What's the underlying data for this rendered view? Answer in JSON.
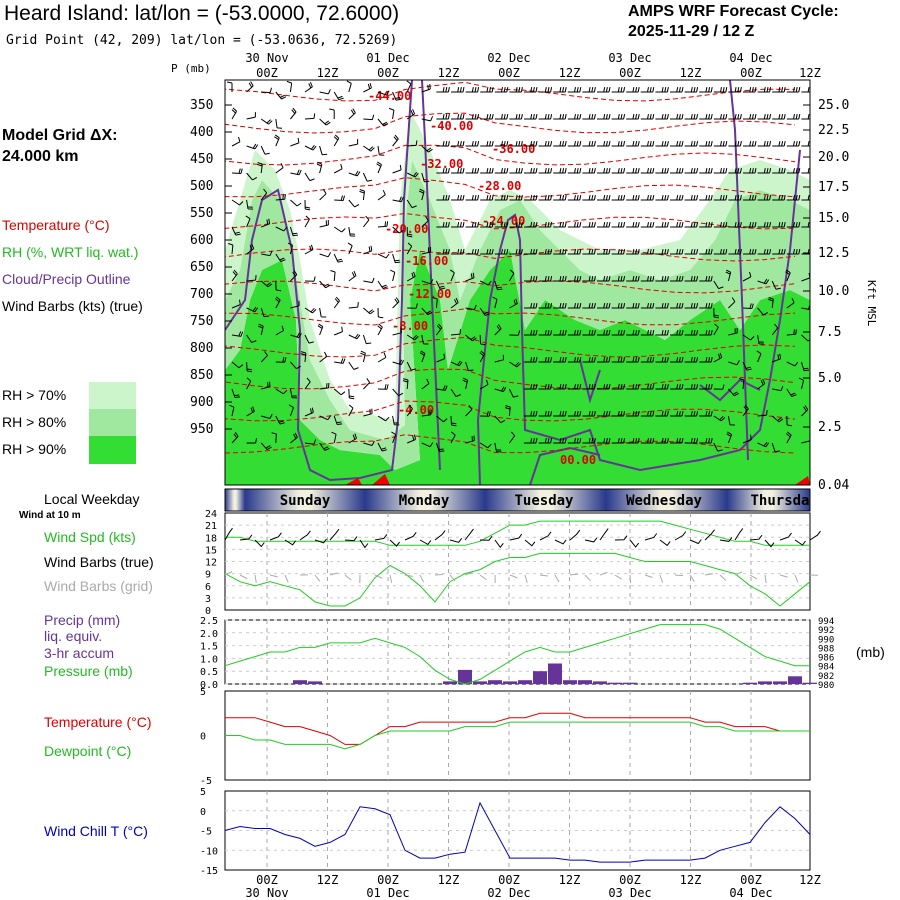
{
  "header": {
    "title": "Heard Island:  lat/lon = (-53.0000, 72.6000)",
    "subtitle": "Grid Point (42, 209) lat/lon = (-53.0636, 72.5269)",
    "cycle_line1": "AMPS WRF Forecast Cycle:",
    "cycle_line2": "2025-11-29 / 12  Z"
  },
  "labels": {
    "grid_dx1": "Model Grid ΔX:",
    "grid_dx2": " 24.000 km",
    "temperature": "Temperature (°C)",
    "rh": "RH (%, WRT liq. wat.)",
    "cloud": "Cloud/Precip Outline",
    "wind_barbs": "Wind Barbs (kts) (true)",
    "rh70": "RH > 70%",
    "rh80": "RH > 80%",
    "rh90": "RH > 90%",
    "local_weekday": "Local Weekday",
    "wind10m": "Wind at 10 m",
    "wind_spd": "Wind Spd (kts)",
    "wind_barbs_true": "Wind Barbs (true)",
    "wind_barbs_grid": "Wind Barbs (grid)",
    "precip1": "Precip (mm)",
    "precip2": "liq. equiv.",
    "precip3": "3-hr accum",
    "pressure": "Pressure (mb)",
    "mb": "(mb)",
    "temperature2": "Temperature (°C)",
    "dewpoint": "Dewpoint (°C)",
    "windchill": "Wind Chill T (°C)",
    "p_mb": "P (mb)",
    "kft": "Kft MSL"
  },
  "colors": {
    "rh70": "#ccf5cc",
    "rh80": "#a0e8a0",
    "rh90": "#33dd33",
    "temp_line": "#dd0000",
    "cloud_line": "#663399",
    "wind_line": "#22cc22",
    "chill_line": "#0000bb",
    "precip_bar": "#663399"
  },
  "chart_data": [
    {
      "type": "heatmap",
      "title": "",
      "x_top_ticks": [
        "00Z",
        "12Z",
        "00Z",
        "12Z",
        "00Z",
        "12Z",
        "00Z",
        "12Z",
        "00Z",
        "12Z"
      ],
      "x_top_dates": [
        "30 Nov",
        "01 Dec",
        "02 Dec",
        "03 Dec",
        "04 Dec"
      ],
      "pressure_ticks": [
        350,
        400,
        450,
        500,
        550,
        600,
        650,
        700,
        750,
        800,
        850,
        900,
        950
      ],
      "height_ticks_kft": [
        "25.0",
        "22.5",
        "20.0",
        "17.5",
        "15.0",
        "12.5",
        "10.0",
        "7.5",
        "5.0",
        "2.5",
        "0.04"
      ],
      "isotherm_labels": [
        "-44.00",
        "-40.00",
        "-36.00",
        "-32.00",
        "-28.00",
        "-24.00",
        "-20.00",
        "-16.00",
        "-12.00",
        "-8.00",
        "-4.00",
        "00.00"
      ],
      "weekdays": [
        "Sunday",
        "Monday",
        "Tuesday",
        "Wednesday",
        "Thursda"
      ]
    },
    {
      "type": "line",
      "title": "",
      "ylabel": "Wind Spd (kts)",
      "ylim": [
        0,
        24
      ],
      "y_ticks": [
        0,
        3,
        6,
        9,
        12,
        15,
        18,
        21,
        24
      ],
      "x_hours": [
        0,
        3,
        6,
        9,
        12,
        15,
        18,
        21,
        24,
        27,
        30,
        33,
        36,
        39,
        42,
        45,
        48,
        51,
        54,
        57,
        60,
        63,
        66,
        69,
        72,
        75,
        78,
        81,
        84,
        87,
        90,
        93,
        96,
        99,
        102,
        105,
        108,
        111,
        114,
        117
      ],
      "series": [
        {
          "values": [
            9,
            7,
            6,
            7,
            6,
            5,
            2,
            1,
            1,
            3,
            8,
            11,
            9,
            6,
            2,
            7,
            9,
            10,
            12,
            13,
            13,
            14,
            14,
            14,
            14,
            14,
            14,
            13,
            12,
            12,
            12,
            12,
            11,
            10,
            9,
            6,
            4,
            1,
            4,
            7
          ]
        }
      ],
      "upper_series": [
        {
          "values": [
            18,
            18,
            17,
            17,
            17,
            17,
            17,
            17,
            17,
            17,
            17,
            16,
            16,
            16,
            16,
            16,
            16,
            17,
            19,
            21,
            21,
            22,
            22,
            22,
            22,
            22,
            22,
            22,
            22,
            22,
            21,
            20,
            19,
            18,
            17,
            17,
            16,
            16,
            16,
            16
          ]
        }
      ]
    },
    {
      "type": "bar",
      "title": "",
      "ylabel": "Precip (mm)",
      "ylim": [
        0,
        2.5
      ],
      "y_ticks": [
        "0.0",
        "0.5",
        "1.0",
        "1.5",
        "2.0",
        "2.5"
      ],
      "precip_bars_mm": [
        0,
        0,
        0,
        0,
        0,
        0.15,
        0.1,
        0,
        0,
        0,
        0,
        0,
        0,
        0,
        0,
        0.1,
        0.55,
        0.1,
        0.15,
        0.1,
        0.15,
        0.5,
        0.8,
        0.15,
        0.15,
        0.1,
        0.05,
        0.05,
        0,
        0,
        0,
        0,
        0,
        0,
        0,
        0.05,
        0.1,
        0.1,
        0.3,
        0.05
      ],
      "pressure_axis": {
        "ylim": [
          980,
          994
        ],
        "y_ticks": [
          "994",
          "992",
          "990",
          "988",
          "986",
          "984",
          "982",
          "980"
        ]
      },
      "pressure_mb": [
        984,
        985,
        986,
        987,
        987,
        988,
        988,
        989,
        989,
        989,
        990,
        989,
        988,
        986,
        983,
        981,
        980,
        981,
        983,
        985,
        987,
        988,
        987,
        987,
        988,
        989,
        990,
        991,
        992,
        993,
        993,
        993,
        993,
        992,
        990,
        988,
        986,
        985,
        984,
        984
      ]
    },
    {
      "type": "line",
      "title": "",
      "ylim": [
        -5,
        5
      ],
      "y_ticks": [
        "5",
        "0",
        "-5"
      ],
      "series": [
        {
          "name": "Temperature (°C)",
          "values": [
            2,
            2,
            2,
            1.5,
            1,
            1,
            0.5,
            0,
            -1,
            -1,
            0,
            1,
            1,
            1.5,
            1.5,
            1.5,
            1.5,
            1.5,
            1.5,
            2,
            2,
            2.5,
            2.5,
            2.5,
            2,
            2,
            2,
            2,
            2,
            2,
            2,
            2,
            1.5,
            1.5,
            1,
            1,
            1,
            0.5,
            0.5,
            0.5
          ]
        },
        {
          "name": "Dewpoint (°C)",
          "values": [
            0,
            0,
            -0.5,
            -0.5,
            -1,
            -1,
            -1,
            -1,
            -1.5,
            -1,
            0,
            0.5,
            0.5,
            0.5,
            0.5,
            0.5,
            1,
            1,
            1,
            1.5,
            1.5,
            1.5,
            1.5,
            1.5,
            1.5,
            1.5,
            1.5,
            1.5,
            1.5,
            1.5,
            1.5,
            1.5,
            1,
            1,
            0.5,
            0.5,
            0.5,
            0.5,
            0.5,
            0.5
          ]
        }
      ]
    },
    {
      "type": "line",
      "title": "",
      "ylabel": "Wind Chill T (°C)",
      "ylim": [
        -15,
        5
      ],
      "y_ticks": [
        "5",
        "0",
        "-5",
        "-10",
        "-15"
      ],
      "x_bottom_ticks": [
        "00Z",
        "12Z",
        "00Z",
        "12Z",
        "00Z",
        "12Z",
        "00Z",
        "12Z",
        "00Z",
        "12Z"
      ],
      "x_bottom_dates": [
        "30 Nov",
        "01 Dec",
        "02 Dec",
        "03 Dec",
        "04 Dec"
      ],
      "series": [
        {
          "name": "Wind Chill T (°C)",
          "values": [
            -5,
            -4,
            -4.5,
            -4.5,
            -6,
            -7,
            -9,
            -8,
            -6,
            1,
            0.5,
            -1,
            -10,
            -12,
            -12,
            -11,
            -10.5,
            2,
            -5,
            -12,
            -12,
            -12,
            -12,
            -12.5,
            -12.5,
            -13,
            -13,
            -13,
            -12.5,
            -12.5,
            -12.5,
            -12.5,
            -12,
            -10,
            -9,
            -8,
            -3,
            1,
            -2,
            -6
          ]
        }
      ]
    }
  ]
}
